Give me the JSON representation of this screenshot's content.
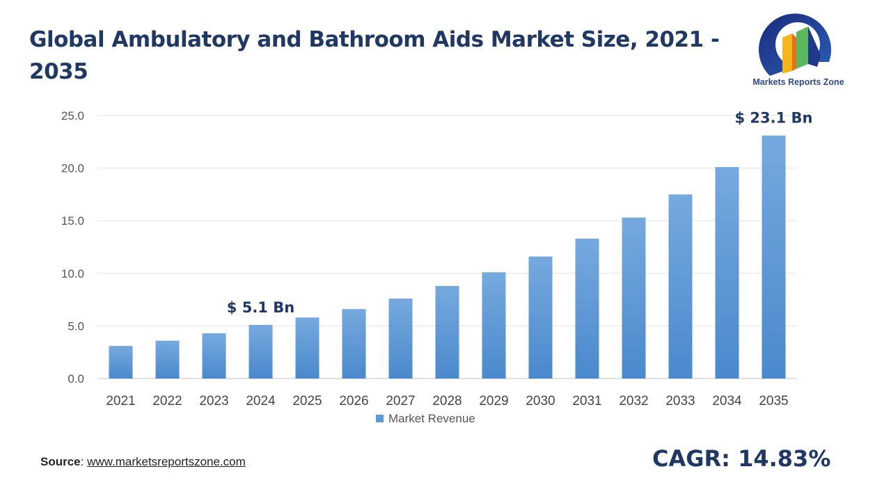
{
  "title": "Global Ambulatory and Bathroom Aids Market Size, 2021 - 2035",
  "logo": {
    "text": "Markets Reports Zone"
  },
  "source": {
    "label": "Source",
    "separator": ": ",
    "url_text": "www.marketsreportszone.com"
  },
  "cagr": "CAGR: 14.83%",
  "chart_data": {
    "type": "bar",
    "title": "Global Ambulatory and Bathroom Aids Market Size, 2021 - 2035",
    "categories": [
      "2021",
      "2022",
      "2023",
      "2024",
      "2025",
      "2026",
      "2027",
      "2028",
      "2029",
      "2030",
      "2031",
      "2032",
      "2033",
      "2034",
      "2035"
    ],
    "series": [
      {
        "name": "Market Revenue",
        "values": [
          3.1,
          3.6,
          4.3,
          5.1,
          5.8,
          6.6,
          7.6,
          8.8,
          10.1,
          11.6,
          13.3,
          15.3,
          17.5,
          20.1,
          23.1
        ],
        "color": "#5b9bd5"
      }
    ],
    "ylim": [
      0,
      25
    ],
    "yticks": [
      "0.0",
      "5.0",
      "10.0",
      "15.0",
      "20.0",
      "25.0"
    ],
    "grid": true,
    "legend": "bottom",
    "annotations": [
      {
        "category": "2024",
        "text": "$ 5.1 Bn"
      },
      {
        "category": "2035",
        "text": "$ 23.1 Bn"
      }
    ]
  }
}
